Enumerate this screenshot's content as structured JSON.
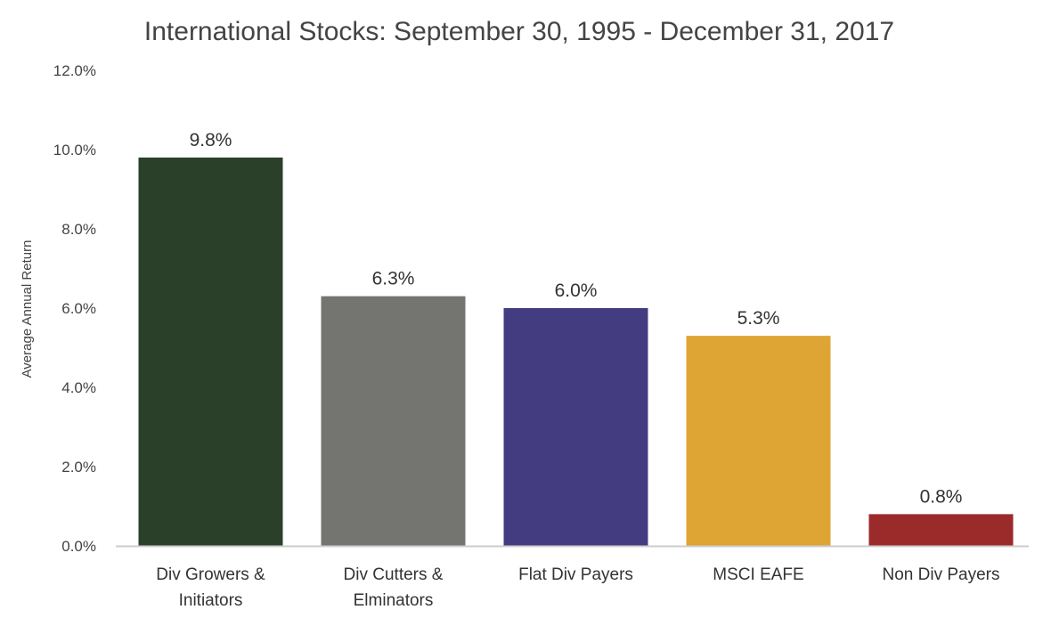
{
  "chart_data": {
    "type": "bar",
    "title": "International Stocks: September 30, 1995 - December 31, 2017",
    "xlabel": "",
    "ylabel": "Average Annual Return",
    "ylim": [
      0,
      12
    ],
    "yticks": [
      0,
      2,
      4,
      6,
      8,
      10,
      12
    ],
    "ytick_labels": [
      "0.0%",
      "2.0%",
      "4.0%",
      "6.0%",
      "8.0%",
      "10.0%",
      "12.0%"
    ],
    "grid": false,
    "categories": [
      [
        "Div Growers &",
        "Initiators"
      ],
      [
        "Div Cutters &",
        "Elminators"
      ],
      [
        "Flat Div Payers"
      ],
      [
        "MSCI EAFE"
      ],
      [
        "Non Div Payers"
      ]
    ],
    "values": [
      9.8,
      6.3,
      6.0,
      5.3,
      0.8
    ],
    "data_labels": [
      "9.8%",
      "6.3%",
      "6.0%",
      "5.3%",
      "0.8%"
    ],
    "colors": [
      "#2a4028",
      "#747470",
      "#443c80",
      "#dea434",
      "#9b2a2a"
    ],
    "axis_color": "#cccccc"
  }
}
